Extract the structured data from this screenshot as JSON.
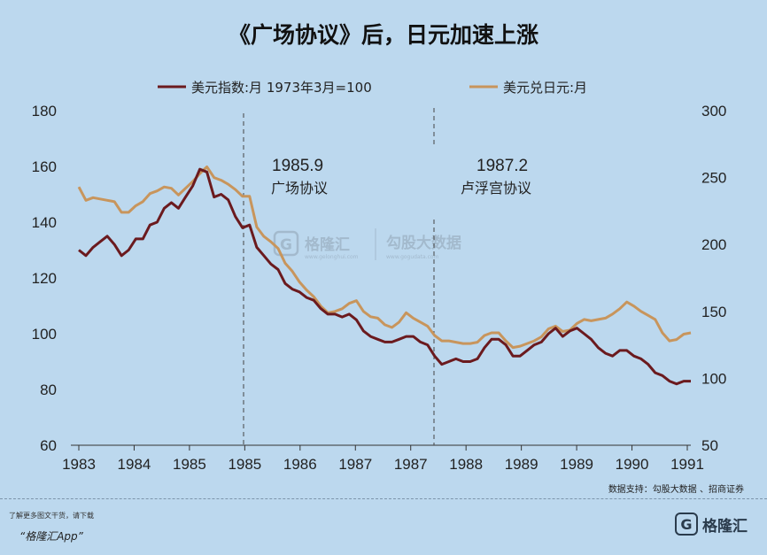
{
  "title": "《广场协议》后，日元加速上涨",
  "chart_data": {
    "type": "line",
    "x_tick_labels": [
      "1983",
      "1984",
      "1985",
      "1985",
      "1986",
      "1987",
      "1987",
      "1988",
      "1989",
      "1989",
      "1990",
      "1991"
    ],
    "ylim_left": [
      60,
      180
    ],
    "yticks_left": [
      60,
      80,
      100,
      120,
      140,
      160,
      180
    ],
    "ylim_right": [
      50,
      300
    ],
    "yticks_right": [
      50,
      100,
      150,
      200,
      250,
      300
    ],
    "grid": false,
    "legend_position": "top",
    "series": [
      {
        "name": "美元指数:月 1973年3月=100",
        "axis": "left",
        "color": "#6b1a1e",
        "values": [
          130,
          128,
          131,
          133,
          135,
          132,
          128,
          130,
          134,
          134,
          139,
          140,
          145,
          147,
          145,
          149,
          153,
          159,
          158,
          149,
          150,
          148,
          142,
          138,
          139,
          131,
          128,
          125,
          123,
          118,
          116,
          115,
          113,
          112,
          109,
          107,
          107,
          106,
          107,
          105,
          101,
          99,
          98,
          97,
          97,
          98,
          99,
          99,
          97,
          96,
          92,
          89,
          90,
          91,
          90,
          90,
          91,
          95,
          98,
          98,
          96,
          92,
          92,
          94,
          96,
          97,
          100,
          102,
          99,
          101,
          102,
          100,
          98,
          95,
          93,
          92,
          94,
          94,
          92,
          91,
          89,
          86,
          85,
          83,
          82,
          83,
          83
        ]
      },
      {
        "name": "美元兑日元:月",
        "axis": "right",
        "color": "#c8955c",
        "values": [
          243,
          233,
          235,
          234,
          233,
          232,
          224,
          224,
          229,
          232,
          238,
          240,
          243,
          242,
          237,
          242,
          247,
          253,
          258,
          250,
          248,
          245,
          241,
          236,
          236,
          213,
          206,
          202,
          197,
          186,
          180,
          172,
          166,
          161,
          154,
          149,
          150,
          152,
          156,
          158,
          150,
          146,
          145,
          140,
          138,
          142,
          149,
          145,
          142,
          139,
          132,
          128,
          128,
          127,
          126,
          126,
          127,
          132,
          134,
          134,
          128,
          123,
          124,
          126,
          128,
          131,
          137,
          139,
          135,
          136,
          141,
          144,
          143,
          144,
          145,
          148,
          152,
          157,
          154,
          150,
          147,
          144,
          134,
          128,
          129,
          133,
          134
        ]
      }
    ],
    "annotations": [
      {
        "year": "1985.9",
        "label": "广场协议"
      },
      {
        "year": "1987.2",
        "label": "卢浮宫协议"
      }
    ]
  },
  "watermark": {
    "brand": "格隆汇",
    "brand_url": "www.gelonghui.com",
    "data_brand": "勾股大数据",
    "data_url": "www.gogudata.com",
    "logo_glyph": "G"
  },
  "source": "数据支持：勾股大数据 、招商证券",
  "footer": {
    "note": "了解更多图文干货，请下载",
    "app": "“格隆汇App”",
    "logo_glyph": "G",
    "logo_name": "格隆汇"
  }
}
